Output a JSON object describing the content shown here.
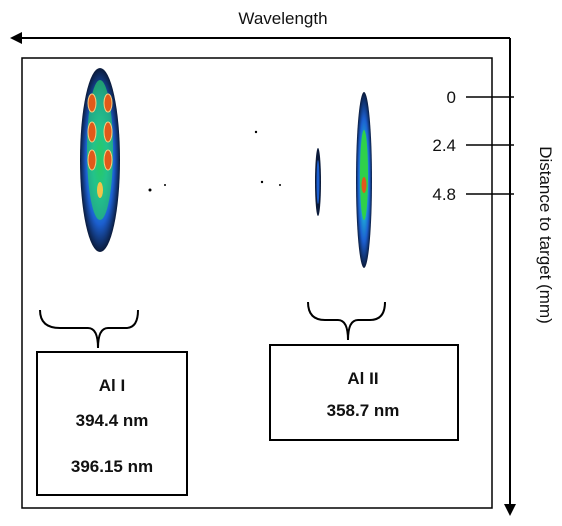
{
  "axes": {
    "x_label": "Wavelength",
    "y_label": "Distance to target (mm)",
    "y_ticks": [
      0,
      2.4,
      4.8
    ]
  },
  "boxes": [
    {
      "title": "Al I",
      "lines": [
        "394.4 nm",
        "396.15 nm"
      ]
    },
    {
      "title": "Al II",
      "lines": [
        "358.7 nm"
      ]
    }
  ]
}
